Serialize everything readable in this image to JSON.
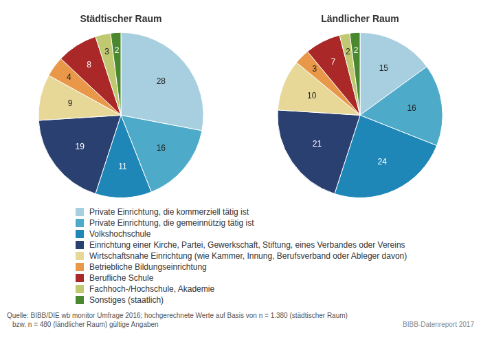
{
  "chart_data": [
    {
      "type": "pie",
      "title": "Städtischer Raum",
      "categories": [
        "Private Einrichtung, die kommerziell tätig ist",
        "Private Einrichtung, die gemeinnützig tätig ist",
        "Volkshochschule",
        "Einrichtung einer Kirche, Partei, Gewerkschaft, Stiftung, eines Verbandes oder Vereins",
        "Wirtschaftsnahe Einrichtung (wie Kammer, Innung, Berufsverband oder Ableger davon)",
        "Betriebliche Bildungseinrichtung",
        "Berufliche Schule",
        "Fachhoch-/Hochschule, Akademie",
        "Sonstiges (staatlich)"
      ],
      "values": [
        28,
        16,
        11,
        19,
        9,
        4,
        8,
        3,
        2
      ],
      "colors": [
        "#a8cfe0",
        "#4daac8",
        "#1e87b8",
        "#2a4070",
        "#e8d898",
        "#e89848",
        "#aa2828",
        "#c0c870",
        "#4a8830"
      ],
      "data_labels": true,
      "legend": "bottom",
      "annotations": [
        "Quelle: BIBB/DIE wb monitor Umfrage 2016; hochgerechnete Werte auf Basis von n = 1.380 (städtischer Raum)",
        "bzw. n = 480 (ländlicher Raum) gültige Angaben",
        "BIBB-Datenreport 2017"
      ]
    },
    {
      "type": "pie",
      "title": "Ländlicher Raum",
      "categories": [
        "Private Einrichtung, die kommerziell tätig ist",
        "Private Einrichtung, die gemeinnützig tätig ist",
        "Volkshochschule",
        "Einrichtung einer Kirche, Partei, Gewerkschaft, Stiftung, eines Verbandes oder Vereins",
        "Wirtschaftsnahe Einrichtung (wie Kammer, Innung, Berufsverband oder Ableger davon)",
        "Betriebliche Bildungseinrichtung",
        "Berufliche Schule",
        "Fachhoch-/Hochschule, Akademie",
        "Sonstiges (staatlich)"
      ],
      "values": [
        15,
        16,
        24,
        21,
        10,
        3,
        7,
        2,
        2
      ],
      "colors": [
        "#a8cfe0",
        "#4daac8",
        "#1e87b8",
        "#2a4070",
        "#e8d898",
        "#e89848",
        "#aa2828",
        "#c0c870",
        "#4a8830"
      ],
      "data_labels": true
    }
  ]
}
